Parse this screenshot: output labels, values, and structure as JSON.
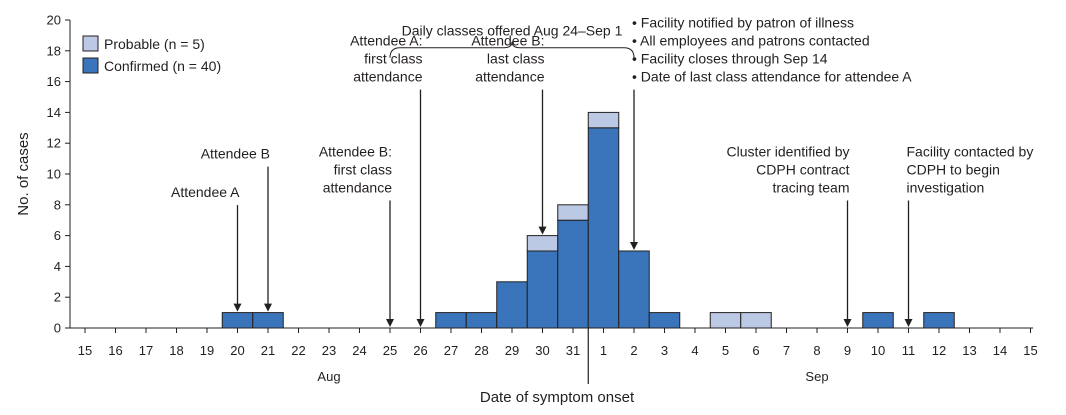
{
  "chart_data": {
    "type": "bar",
    "stacked": true,
    "xlabel": "Date of symptom onset",
    "ylabel": "No. of cases",
    "ylim": [
      0,
      20
    ],
    "yticks": [
      0,
      2,
      4,
      6,
      8,
      10,
      12,
      14,
      16,
      18,
      20
    ],
    "grid": false,
    "legend_position": "top-left",
    "month_labels": [
      {
        "text": "Aug",
        "between": [
          "15",
          "31"
        ]
      },
      {
        "text": "Sep",
        "between": [
          "1",
          "15"
        ]
      }
    ],
    "x_ticks": [
      "15",
      "16",
      "17",
      "18",
      "19",
      "20",
      "21",
      "22",
      "23",
      "24",
      "25",
      "26",
      "27",
      "28",
      "29",
      "30",
      "31",
      "1",
      "2",
      "3",
      "4",
      "5",
      "6",
      "7",
      "8",
      "9",
      "10",
      "11",
      "12",
      "13",
      "14",
      "15"
    ],
    "series": [
      {
        "name": "Probable (n = 5)",
        "color": "#bcc9e4",
        "values": [
          0,
          0,
          0,
          0,
          0,
          0,
          0,
          0,
          0,
          0,
          0,
          0,
          0,
          0,
          1,
          1,
          1,
          0,
          0,
          0,
          1,
          1,
          0,
          0,
          0,
          0,
          0,
          0,
          0,
          0,
          0
        ]
      },
      {
        "name": "Confirmed (n = 40)",
        "color": "#3a75bb",
        "values": [
          0,
          0,
          0,
          0,
          1,
          1,
          0,
          0,
          0,
          0,
          0,
          1,
          1,
          3,
          5,
          7,
          13,
          5,
          1,
          0,
          0,
          0,
          0,
          0,
          0,
          1,
          0,
          1,
          0,
          0,
          0
        ]
      }
    ],
    "annotations": [
      {
        "lines": [
          "Attendee A"
        ],
        "date_index": 4.5,
        "label_y": 8.5,
        "arrow_to": 1,
        "align": "end"
      },
      {
        "lines": [
          "Attendee B"
        ],
        "date_index": 5.5,
        "label_y": 11,
        "arrow_to": 1,
        "align": "end"
      },
      {
        "lines": [
          "Attendee B:",
          "first class",
          "attendance"
        ],
        "date_index": 9.5,
        "label_y": 8.8,
        "arrow_to": 0,
        "align": "end"
      },
      {
        "lines": [
          "Attendee A:",
          "first class",
          "attendance"
        ],
        "date_index": 10.5,
        "label_y": 16,
        "arrow_to": 0,
        "align": "end"
      },
      {
        "lines": [
          "Attendee B:",
          "last class",
          "attendance"
        ],
        "date_index": 14.5,
        "label_y": 16,
        "arrow_to": 6,
        "align": "end"
      },
      {
        "lines": [
          "• Facility notified by patron of illness",
          "• All employees and patrons contacted",
          "• Facility closes through Sep 14",
          "• Date of last class attendance for attendee A"
        ],
        "date_index": 17.5,
        "label_y": 16,
        "arrow_to": 5,
        "align": "start"
      },
      {
        "lines": [
          "Cluster identified by",
          "CDPH contract",
          "tracing team"
        ],
        "date_index": 24.5,
        "label_y": 8.8,
        "arrow_to": 0,
        "align": "end"
      },
      {
        "lines": [
          "Facility contacted by",
          "CDPH to begin",
          "investigation"
        ],
        "date_index": 26.5,
        "label_y": 8.8,
        "arrow_to": 0,
        "align": "start"
      }
    ],
    "bracket": {
      "label": "Daily classes offered Aug 24–Sep 1",
      "from_index": 9.5,
      "to_index": 17.5,
      "y": 18.2
    }
  }
}
